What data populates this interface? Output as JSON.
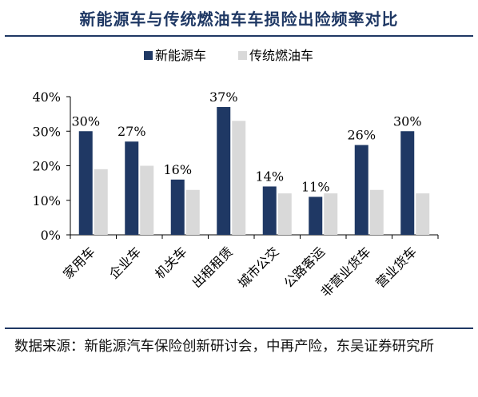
{
  "title": "新能源车与传统燃油车车损险出险频率对比",
  "source": "数据来源：新能源汽车保险创新研讨会，中再产险，东吴证券研究所",
  "chart_data": {
    "type": "bar",
    "categories": [
      "家用车",
      "企业车",
      "机关车",
      "出租租赁",
      "城市公交",
      "公路客运",
      "非营业货车",
      "营业货车"
    ],
    "series": [
      {
        "name": "新能源车",
        "color": "#1f3864",
        "values": [
          30,
          27,
          16,
          37,
          14,
          11,
          26,
          30
        ]
      },
      {
        "name": "传统燃油车",
        "color": "#d9d9d9",
        "values": [
          19,
          20,
          13,
          33,
          12,
          12,
          13,
          12
        ]
      }
    ],
    "data_labels": [
      "30%",
      "27%",
      "16%",
      "37%",
      "14%",
      "11%",
      "26%",
      "30%"
    ],
    "yticks": [
      "0%",
      "10%",
      "20%",
      "30%",
      "40%"
    ],
    "ylim": [
      0,
      40
    ],
    "unit": "%",
    "legend_position": "top-center"
  }
}
